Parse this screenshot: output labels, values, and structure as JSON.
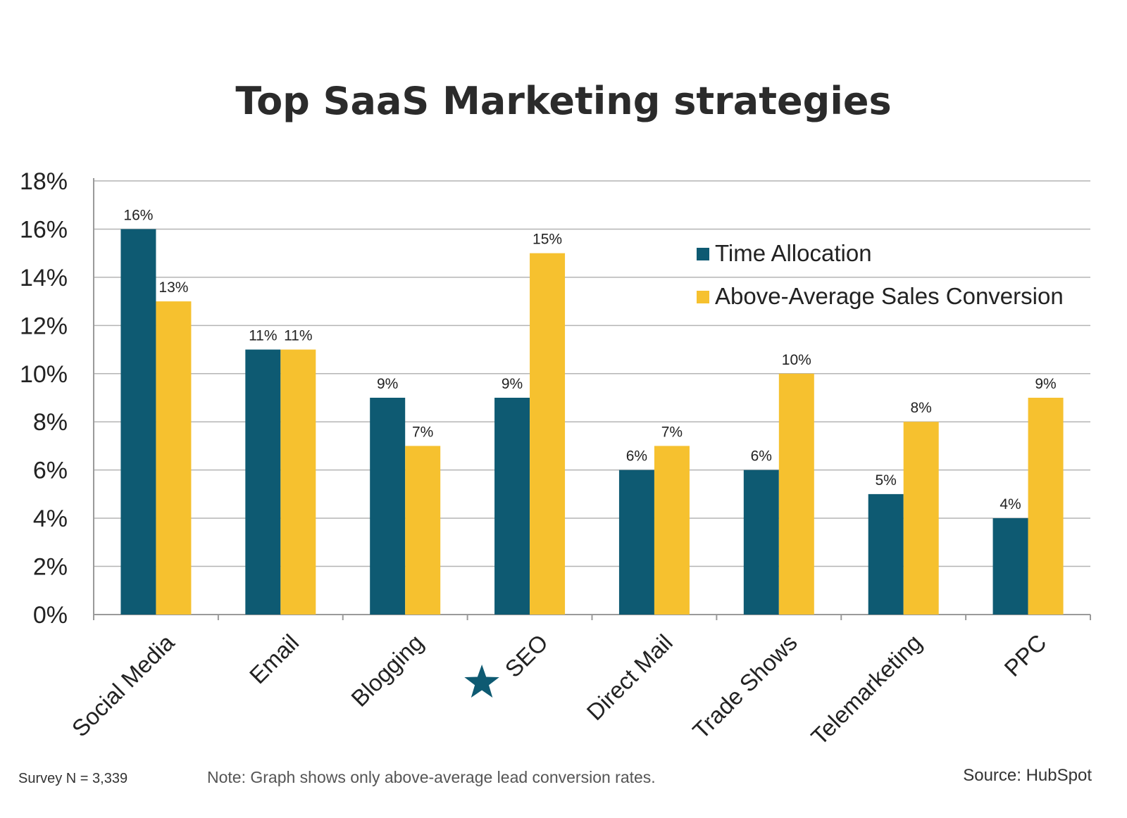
{
  "title": "Top SaaS Marketing strategies",
  "chart_data": {
    "type": "bar",
    "categories": [
      "Social Media",
      "Email",
      "Blogging",
      "SEO",
      "Direct Mail",
      "Trade Shows",
      "Telemarketing",
      "PPC"
    ],
    "highlighted_category": "SEO",
    "highlight_icon": "star-icon",
    "series": [
      {
        "name": "Time Allocation",
        "color": "#0e5a72",
        "values": [
          16,
          11,
          9,
          9,
          6,
          6,
          5,
          4
        ]
      },
      {
        "name": "Above-Average Sales Conversion",
        "color": "#f6c12f",
        "values": [
          13,
          11,
          7,
          15,
          7,
          10,
          8,
          9
        ]
      }
    ],
    "data_label_suffix": "%",
    "yticks": [
      "0%",
      "2%",
      "4%",
      "6%",
      "8%",
      "10%",
      "12%",
      "14%",
      "16%",
      "18%"
    ],
    "ylim": [
      0,
      18
    ],
    "grid": true,
    "legend_position": "top-right"
  },
  "footer": {
    "survey": "Survey N = 3,339",
    "note": "Note: Graph shows only above-average lead conversion rates.",
    "source": "Source: HubSpot"
  }
}
